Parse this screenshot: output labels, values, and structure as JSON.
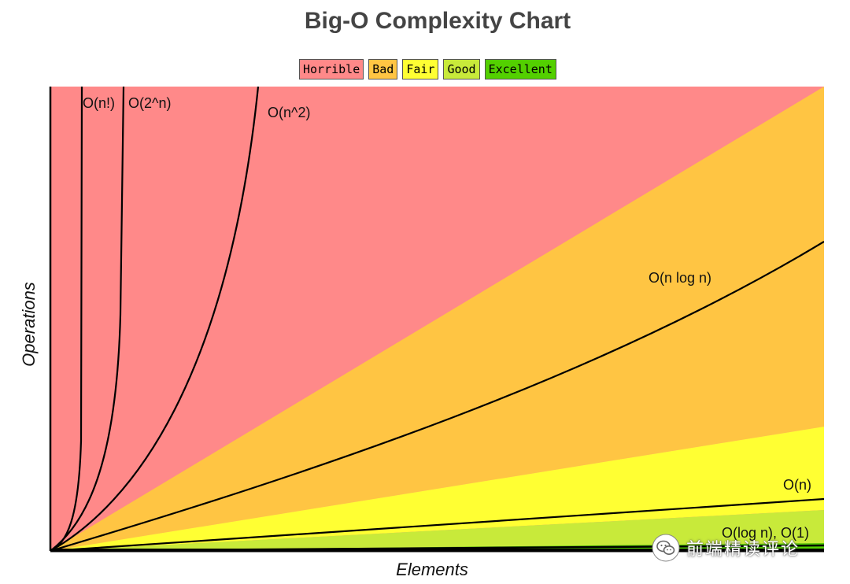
{
  "chart_data": {
    "type": "line",
    "title": "Big-O Complexity Chart",
    "xlabel": "Elements",
    "ylabel": "Operations",
    "legend": {
      "placement": "top",
      "items": [
        {
          "label": "Horrible",
          "color": "#ff8989"
        },
        {
          "label": "Bad",
          "color": "#ffc543"
        },
        {
          "label": "Fair",
          "color": "#ffff33"
        },
        {
          "label": "Good",
          "color": "#c8ea3a"
        },
        {
          "label": "Excellent",
          "color": "#53d000"
        }
      ]
    },
    "series": [
      {
        "name": "O(n!)",
        "label": "O(n!)"
      },
      {
        "name": "O(2^n)",
        "label": "O(2^n)"
      },
      {
        "name": "O(n^2)",
        "label": "O(n^2)"
      },
      {
        "name": "O(n log n)",
        "label": "O(n log n)"
      },
      {
        "name": "O(n)",
        "label": "O(n)"
      },
      {
        "name": "O(log n)",
        "label": "O(log n), O(1)"
      },
      {
        "name": "O(1)",
        "label": ""
      }
    ],
    "grid": false
  },
  "watermark": {
    "text": "前端精读评论",
    "icon": "wechat-icon"
  }
}
